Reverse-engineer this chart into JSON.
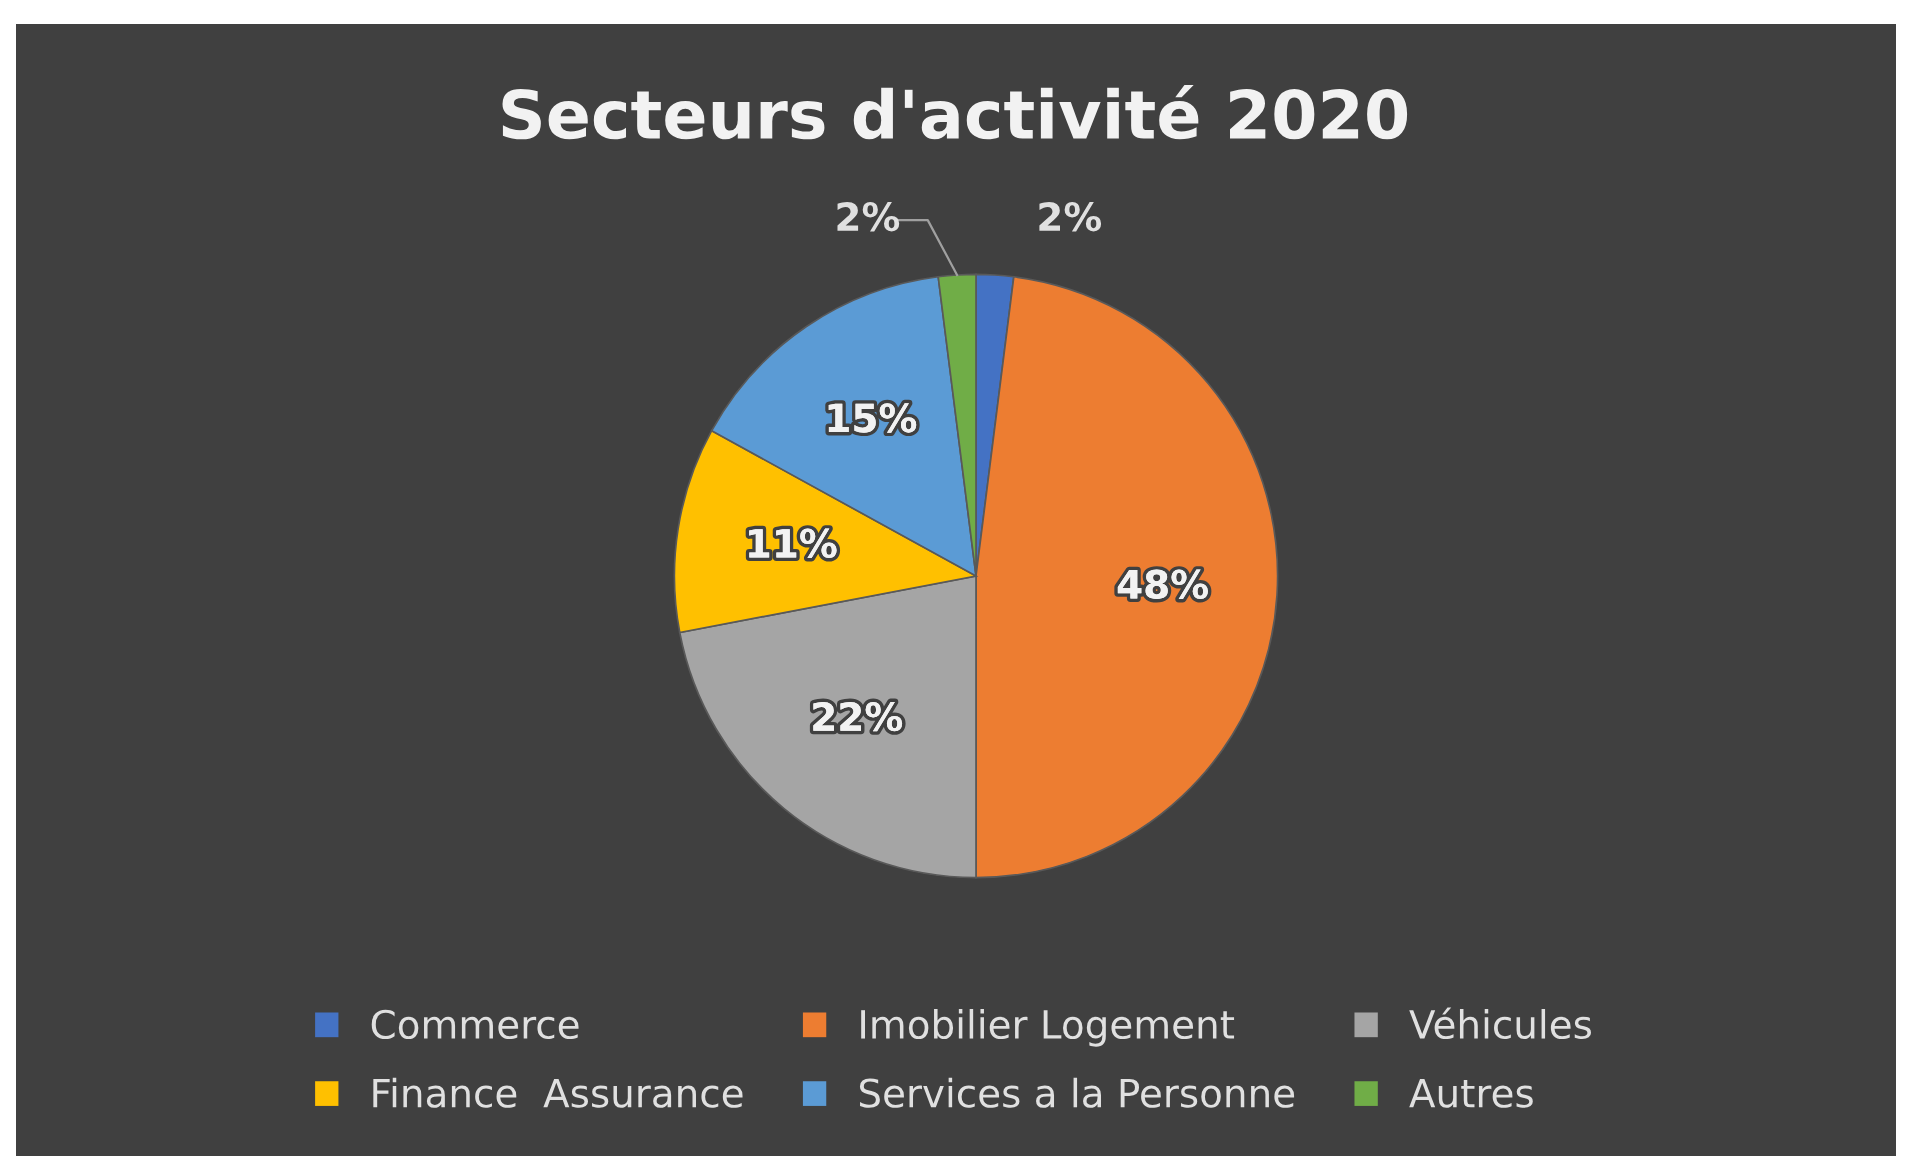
{
  "chart_data": {
    "type": "pie",
    "title": "Secteurs d'activité 2020",
    "categories": [
      "Commerce",
      "Imobilier Logement",
      "Véhicules",
      "Finance  Assurance",
      "Services a la Personne",
      "Autres"
    ],
    "values": [
      2,
      48,
      22,
      11,
      15,
      2
    ],
    "colors": [
      "#4472c4",
      "#ed7d31",
      "#a5a5a5",
      "#ffc000",
      "#5b9bd5",
      "#70ad47"
    ],
    "value_labels": [
      "2%",
      "48%",
      "22%",
      "11%",
      "15%",
      "2%"
    ],
    "legend": "bottom"
  }
}
